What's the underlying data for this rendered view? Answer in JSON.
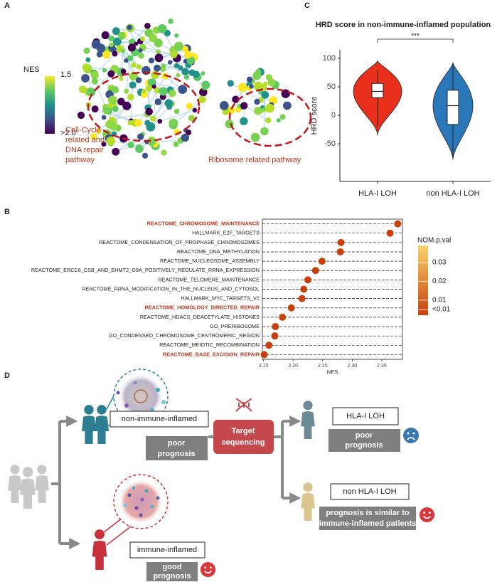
{
  "panels": {
    "a": "A",
    "b": "B",
    "c": "C",
    "d": "D"
  },
  "network": {
    "colorbar": {
      "title": "NES",
      "top_label": "1.5",
      "bottom_label": ">2.0",
      "colors": [
        "#fde725",
        "#5ec962",
        "#21918c",
        "#3b528b",
        "#440154"
      ]
    },
    "cell_cycle_label": [
      "Cell-Cycle",
      "related and",
      "DNA repair",
      "pathway"
    ],
    "ribosome_label": "Ribosome related pathway"
  },
  "chart_data": [
    {
      "type": "dot",
      "categories": [
        "REACTOME_CHROMOSOME_MAINTENANCE",
        "HALLMARK_E2F_TARGETS",
        "REACTOME_CONDENSATION_OF_PROPHASE_CHROMOSOMES",
        "REACTOME_DNA_METHYLATION",
        "REACTOME_NUCLEOSOME_ASSEMBLY",
        "REACTOME_ERCC6_CSB_AND_EHMT2_G9A_POSITIVELY_REGULATE_RRNA_EXPRESSION",
        "REACTOME_TELOMERE_MAINTENANCE",
        "REACTOME_RRNA_MODIFICATION_IN_THE_NUCLEUS_AND_CYTOSOL",
        "HALLMARK_MYC_TARGETS_V2",
        "REACTOME_HOMOLOGY_DIRECTED_REPAIR",
        "REACTOME_HDACS_DEACETYLATE_HISTONES",
        "GO_PRERIBOSOME",
        "GO_CONDENSED_CHROMOSOME_CENTROMERIC_REGION",
        "REACTOME_MEIOTIC_RECOMBINATION",
        "REACTOME_BASE_EXCISION_REPAIR"
      ],
      "values": [
        2.377,
        2.364,
        2.281,
        2.28,
        2.249,
        2.238,
        2.225,
        2.218,
        2.215,
        2.197,
        2.182,
        2.17,
        2.169,
        2.159,
        2.151
      ],
      "color": "#c8400c",
      "label_colors": [
        "#b5371f",
        "#222222",
        "#222222",
        "#222222",
        "#222222",
        "#222222",
        "#222222",
        "#222222",
        "#222222",
        "#b5371f",
        "#222222",
        "#222222",
        "#222222",
        "#222222",
        "#b5371f"
      ],
      "xlim": [
        2.148,
        2.385
      ],
      "xticks": [
        2.15,
        {
          "value": 2.2,
          "label": "2.20"
        },
        2.25,
        {
          "value": 2.3,
          "label": "2.30"
        },
        2.35
      ],
      "x_label": "NES",
      "color_scale": {
        "title": "NOM.p.val",
        "colors": [
          "#fbd36a",
          "#c8400c"
        ],
        "clim": [
          0.002,
          0.039
        ],
        "ticks": [
          0.03,
          0.02,
          0.01,
          {
            "value": 0.005,
            "label": "<0.01"
          }
        ]
      }
    },
    {
      "type": "violin",
      "title": "HRD score in non-immune-inflamed population",
      "y_label": "HRD score",
      "categories": [
        "HLA-I LOH",
        "non HLA-I LOH"
      ],
      "colors": [
        "#e8301c",
        "#2a78b9"
      ],
      "boxes": [
        {
          "whisker_low": -20,
          "q1": 31,
          "median": 42,
          "q3": 56,
          "whisker_high": 80,
          "violin_low": -35,
          "violin_high": 95
        },
        {
          "whisker_low": -72,
          "q1": -16,
          "median": 17,
          "q3": 44,
          "whisker_high": 90,
          "violin_low": -78,
          "violin_high": 92
        }
      ],
      "ylim": [
        -116,
        115
      ],
      "yticks": [
        -50,
        0,
        50,
        100
      ],
      "significance": "***"
    }
  ],
  "diagram": {
    "non_immune": "non-immune-inflamed",
    "non_immune_prognosis": [
      "poor",
      "prognosis"
    ],
    "target": [
      "Target",
      "sequencing"
    ],
    "hla_loh": "HLA-I LOH",
    "hla_loh_prognosis": [
      "poor",
      "prognosis"
    ],
    "non_hla_loh": "non HLA-I LOH",
    "non_hla_loh_prognosis": [
      "prognosis is similar to",
      "immune-inflamed patients"
    ],
    "immune": "immune-inflamed",
    "immune_prognosis": [
      "good",
      "prognosis"
    ]
  }
}
